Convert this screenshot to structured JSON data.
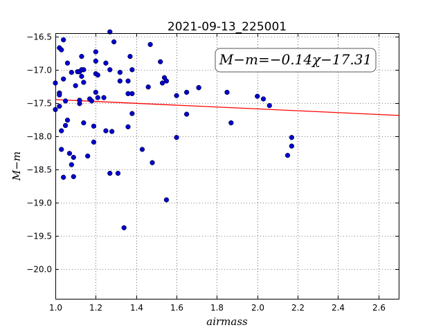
{
  "chart_data": {
    "type": "scatter",
    "title": "2021-09-13_225001",
    "xlabel": "airmass",
    "ylabel": "M−m",
    "xlim": [
      1.0,
      2.7
    ],
    "ylim": [
      -20.45,
      -16.45
    ],
    "y_inverted": true,
    "grid": true,
    "x_ticks": [
      1.0,
      1.2,
      1.4,
      1.6,
      1.8,
      2.0,
      2.2,
      2.4,
      2.6
    ],
    "x_tick_labels": [
      "1.0",
      "1.2",
      "1.4",
      "1.6",
      "1.8",
      "2.0",
      "2.2",
      "2.4",
      "2.6"
    ],
    "y_ticks": [
      -16.5,
      -17.0,
      -17.5,
      -18.0,
      -18.5,
      -19.0,
      -19.5,
      -20.0
    ],
    "y_tick_labels": [
      "−16.5",
      "−17.0",
      "−17.5",
      "−18.0",
      "−18.5",
      "−19.0",
      "−19.5",
      "−20.0"
    ],
    "annotation": "M−m=−0.14χ−17.31",
    "fit": {
      "slope": -0.14,
      "intercept": -17.31,
      "color": "#ff0000"
    },
    "marker_color": "#0000cc",
    "series": [
      {
        "points": [
          [
            1.0,
            -17.2
          ],
          [
            1.0,
            -17.6
          ],
          [
            1.02,
            -17.35
          ],
          [
            1.02,
            -17.38
          ],
          [
            1.02,
            -17.55
          ],
          [
            1.02,
            -16.67
          ],
          [
            1.03,
            -16.7
          ],
          [
            1.03,
            -17.92
          ],
          [
            1.03,
            -18.2
          ],
          [
            1.04,
            -18.62
          ],
          [
            1.04,
            -17.14
          ],
          [
            1.04,
            -16.55
          ],
          [
            1.05,
            -17.47
          ],
          [
            1.05,
            -17.84
          ],
          [
            1.06,
            -17.76
          ],
          [
            1.06,
            -16.9
          ],
          [
            1.07,
            -18.26
          ],
          [
            1.08,
            -17.04
          ],
          [
            1.08,
            -18.43
          ],
          [
            1.09,
            -18.32
          ],
          [
            1.09,
            -18.61
          ],
          [
            1.1,
            -17.24
          ],
          [
            1.11,
            -17.03
          ],
          [
            1.12,
            -17.03
          ],
          [
            1.12,
            -17.51
          ],
          [
            1.12,
            -17.46
          ],
          [
            1.13,
            -17.0
          ],
          [
            1.13,
            -16.8
          ],
          [
            1.13,
            -17.1
          ],
          [
            1.14,
            -17.8
          ],
          [
            1.14,
            -17.19
          ],
          [
            1.14,
            -17.0
          ],
          [
            1.16,
            -18.3
          ],
          [
            1.17,
            -17.44
          ],
          [
            1.18,
            -17.47
          ],
          [
            1.19,
            -17.85
          ],
          [
            1.19,
            -18.09
          ],
          [
            1.2,
            -17.34
          ],
          [
            1.2,
            -17.06
          ],
          [
            1.2,
            -16.87
          ],
          [
            1.2,
            -16.73
          ],
          [
            1.21,
            -17.42
          ],
          [
            1.21,
            -17.08
          ],
          [
            1.24,
            -17.42
          ],
          [
            1.25,
            -16.9
          ],
          [
            1.25,
            -17.92
          ],
          [
            1.27,
            -18.56
          ],
          [
            1.27,
            -17.0
          ],
          [
            1.27,
            -16.43
          ],
          [
            1.28,
            -17.93
          ],
          [
            1.29,
            -16.58
          ],
          [
            1.31,
            -18.56
          ],
          [
            1.32,
            -17.04
          ],
          [
            1.32,
            -17.17
          ],
          [
            1.34,
            -19.38
          ],
          [
            1.36,
            -17.36
          ],
          [
            1.36,
            -17.17
          ],
          [
            1.36,
            -17.86
          ],
          [
            1.37,
            -16.8
          ],
          [
            1.38,
            -17.36
          ],
          [
            1.38,
            -17.66
          ],
          [
            1.38,
            -17.0
          ],
          [
            1.43,
            -18.2
          ],
          [
            1.46,
            -17.26
          ],
          [
            1.47,
            -16.62
          ],
          [
            1.48,
            -18.4
          ],
          [
            1.52,
            -16.88
          ],
          [
            1.53,
            -17.2
          ],
          [
            1.54,
            -17.12
          ],
          [
            1.55,
            -17.17
          ],
          [
            1.55,
            -18.96
          ],
          [
            1.6,
            -18.02
          ],
          [
            1.6,
            -17.39
          ],
          [
            1.65,
            -17.67
          ],
          [
            1.65,
            -17.34
          ],
          [
            1.71,
            -17.27
          ],
          [
            1.71,
            -17.27
          ],
          [
            1.85,
            -17.34
          ],
          [
            1.87,
            -17.8
          ],
          [
            2.0,
            -17.4
          ],
          [
            2.03,
            -17.44
          ],
          [
            2.06,
            -17.54
          ],
          [
            2.15,
            -18.29
          ],
          [
            2.17,
            -18.02
          ],
          [
            2.17,
            -18.15
          ]
        ]
      }
    ]
  }
}
